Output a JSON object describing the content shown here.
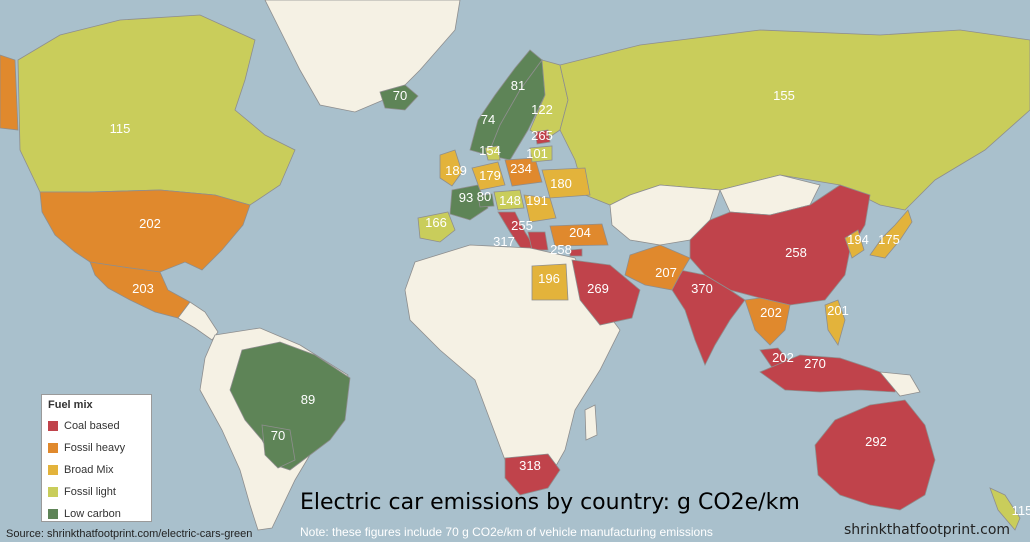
{
  "title": "Electric car emissions by country: g CO2e/km",
  "note": "Note: these figures include 70 g CO2e/km of vehicle manufacturing emissions",
  "source": "Source: shrinkthatfootprint.com/electric-cars-green",
  "brand": "shrinkthatfootprint.com",
  "legend": {
    "title": "Fuel mix",
    "items": [
      {
        "label": "Coal based",
        "color": "#c0434b"
      },
      {
        "label": "Fossil heavy",
        "color": "#e0892d"
      },
      {
        "label": "Broad Mix",
        "color": "#e3b33b"
      },
      {
        "label": "Fossil light",
        "color": "#c9cd5b"
      },
      {
        "label": "Low carbon",
        "color": "#5e8457"
      }
    ]
  },
  "colors": {
    "ocean": "#a9c0cc",
    "unrated": "#f5f1e4"
  },
  "countries": {
    "canada": {
      "value": "115",
      "category": "Fossil light"
    },
    "usa": {
      "value": "202",
      "category": "Fossil heavy"
    },
    "mexico": {
      "value": "203",
      "category": "Fossil heavy"
    },
    "brazil": {
      "value": "89",
      "category": "Low carbon"
    },
    "paraguay": {
      "value": "70",
      "category": "Low carbon"
    },
    "iceland": {
      "value": "70",
      "category": "Low carbon"
    },
    "norway": {
      "value": "74",
      "category": "Low carbon"
    },
    "sweden": {
      "value": "81",
      "category": "Low carbon"
    },
    "finland": {
      "value": "122",
      "category": "Fossil light"
    },
    "estonia": {
      "value": "265",
      "category": "Coal based"
    },
    "latvia": {
      "value": "101",
      "category": "Fossil light"
    },
    "denmark": {
      "value": "154",
      "category": "Fossil light"
    },
    "uk": {
      "value": "189",
      "category": "Broad Mix"
    },
    "netherlands": {
      "value": "179",
      "category": "Broad Mix"
    },
    "poland": {
      "value": "234",
      "category": "Fossil heavy"
    },
    "ukraine": {
      "value": "180",
      "category": "Broad Mix"
    },
    "france": {
      "value": "93",
      "category": "Low carbon"
    },
    "switzerland": {
      "value": "80",
      "category": "Low carbon"
    },
    "austria": {
      "value": "148",
      "category": "Fossil light"
    },
    "romania": {
      "value": "191",
      "category": "Broad Mix"
    },
    "spain": {
      "value": "166",
      "category": "Fossil light"
    },
    "italy": {
      "value": "255",
      "category": "Coal based"
    },
    "greece": {
      "value": "317",
      "category": "Coal based"
    },
    "cyprus": {
      "value": "258",
      "category": "Coal based"
    },
    "turkey": {
      "value": "204",
      "category": "Fossil heavy"
    },
    "egypt": {
      "value": "196",
      "category": "Broad Mix"
    },
    "saudi_arabia": {
      "value": "269",
      "category": "Coal based"
    },
    "iran": {
      "value": "207",
      "category": "Fossil heavy"
    },
    "india": {
      "value": "370",
      "category": "Coal based"
    },
    "china": {
      "value": "258",
      "category": "Coal based"
    },
    "thailand": {
      "value": "202",
      "category": "Fossil heavy"
    },
    "philippines": {
      "value": "201",
      "category": "Broad Mix"
    },
    "malaysia": {
      "value": "202",
      "category": "Coal based"
    },
    "indonesia": {
      "value": "270",
      "category": "Coal based"
    },
    "korea": {
      "value": "194",
      "category": "Broad Mix"
    },
    "japan": {
      "value": "175",
      "category": "Broad Mix"
    },
    "russia": {
      "value": "155",
      "category": "Fossil light"
    },
    "south_africa": {
      "value": "318",
      "category": "Coal based"
    },
    "australia": {
      "value": "292",
      "category": "Coal based"
    },
    "new_zealand": {
      "value": "115",
      "category": "Fossil light"
    }
  }
}
